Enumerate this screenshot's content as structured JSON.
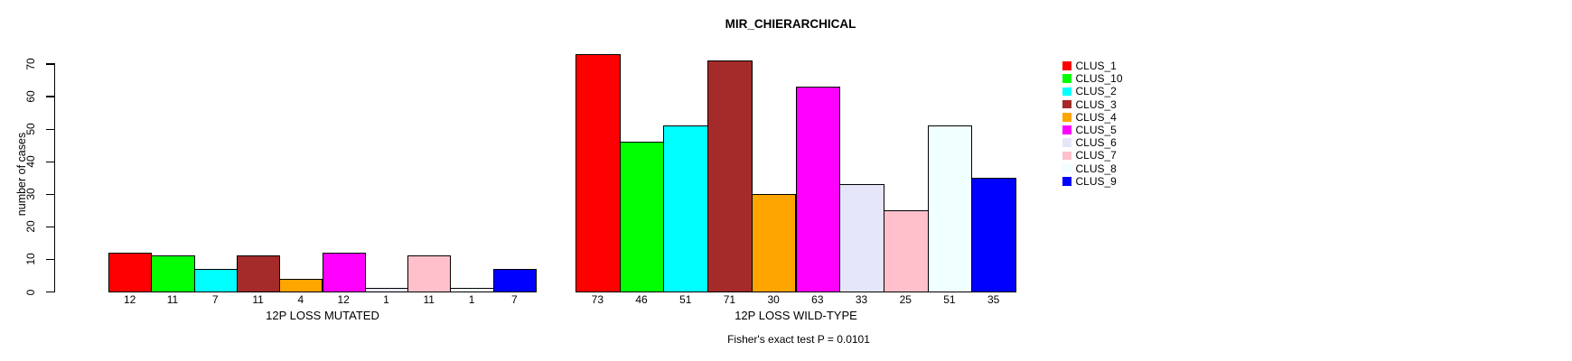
{
  "title": "MIR_CHIERARCHICAL",
  "ylabel": "number of cases",
  "annotation": "Fisher's exact test P = 0.0101",
  "chart_data": {
    "type": "bar",
    "title": "MIR_CHIERARCHICAL",
    "ylabel": "number of cases",
    "xlabel": "",
    "yticks": [
      0,
      10,
      20,
      30,
      40,
      50,
      60,
      70
    ],
    "ylim": [
      0,
      73
    ],
    "grid": false,
    "legend_position": "right",
    "clusters": [
      {
        "name": "CLUS_1",
        "color": "#FF0000"
      },
      {
        "name": "CLUS_10",
        "color": "#00FF00"
      },
      {
        "name": "CLUS_2",
        "color": "#00FFFF"
      },
      {
        "name": "CLUS_3",
        "color": "#A52A2A"
      },
      {
        "name": "CLUS_4",
        "color": "#FFA500"
      },
      {
        "name": "CLUS_5",
        "color": "#FF00FF"
      },
      {
        "name": "CLUS_6",
        "color": "#E6E6FA"
      },
      {
        "name": "CLUS_7",
        "color": "#FFC0CB"
      },
      {
        "name": "CLUS_8",
        "color": "#F0FFFF"
      },
      {
        "name": "CLUS_9",
        "color": "#0000FF"
      }
    ],
    "groups": [
      {
        "label": "12P LOSS MUTATED",
        "values": [
          12,
          11,
          7,
          11,
          4,
          12,
          1,
          11,
          1,
          7
        ]
      },
      {
        "label": "12P LOSS WILD-TYPE",
        "values": [
          73,
          46,
          51,
          71,
          30,
          63,
          33,
          25,
          51,
          35
        ]
      }
    ],
    "annotation": "Fisher's exact test P = 0.0101"
  }
}
